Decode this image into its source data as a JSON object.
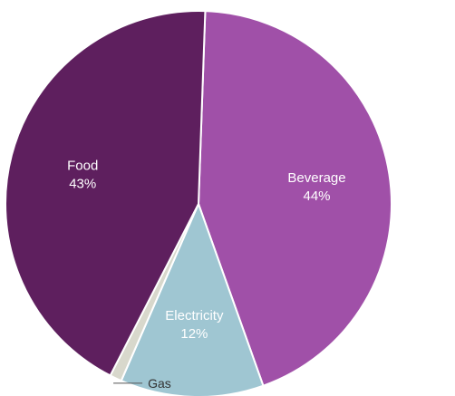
{
  "chart_data": {
    "type": "pie",
    "title": "",
    "slices": [
      {
        "label": "Beverage",
        "value": 44,
        "value_label": "44%",
        "color": "#a050a8",
        "label_placement": "inside"
      },
      {
        "label": "Electricity",
        "value": 12,
        "value_label": "12%",
        "color": "#9fc6d2",
        "label_placement": "inside"
      },
      {
        "label": "Gas",
        "value": 1,
        "value_label": "1%",
        "color": "#d8d8cc",
        "label_placement": "outside"
      },
      {
        "label": "Food",
        "value": 43,
        "value_label": "43%",
        "color": "#5e1f5e",
        "label_placement": "inside"
      }
    ],
    "start_angle_deg": -88,
    "direction": "clockwise",
    "legend": "none"
  }
}
